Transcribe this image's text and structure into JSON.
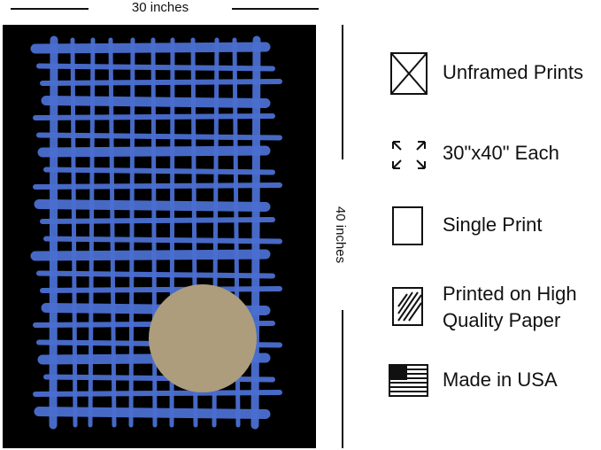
{
  "dimensions": {
    "width_label": "30 inches",
    "height_label": "40 inches"
  },
  "features": [
    {
      "lines": [
        "Unframed Prints"
      ]
    },
    {
      "lines": [
        "30\"x40\" Each"
      ]
    },
    {
      "lines": [
        "Single Print"
      ]
    },
    {
      "lines": [
        "Printed on High",
        "Quality Paper"
      ]
    },
    {
      "lines": [
        "Made in USA"
      ]
    }
  ]
}
